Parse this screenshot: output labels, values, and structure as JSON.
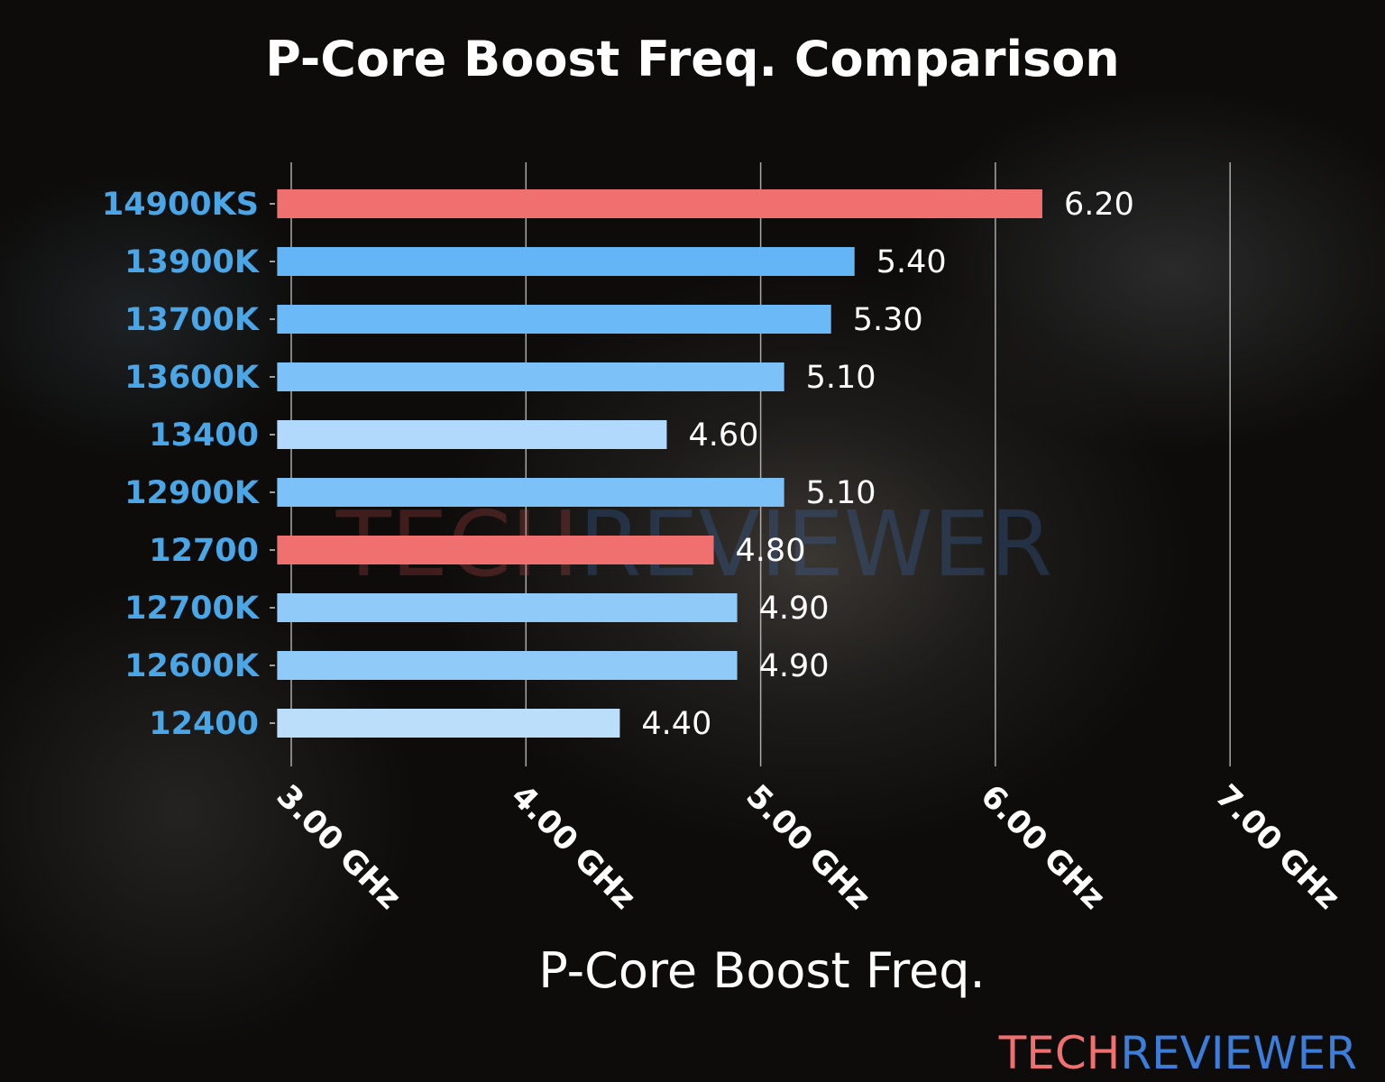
{
  "chart_data": {
    "type": "bar",
    "orientation": "horizontal",
    "title": "P-Core Boost Freq. Comparison",
    "xlabel": "P-Core Boost Freq.",
    "ylabel": "",
    "categories": [
      "14900KS",
      "13900K",
      "13700K",
      "13600K",
      "13400",
      "12900K",
      "12700",
      "12700K",
      "12600K",
      "12400"
    ],
    "values": [
      6.2,
      5.4,
      5.3,
      5.1,
      4.6,
      5.1,
      4.8,
      4.9,
      4.9,
      4.4
    ],
    "value_labels": [
      "6.20",
      "5.40",
      "5.30",
      "5.10",
      "4.60",
      "5.10",
      "4.80",
      "4.90",
      "4.90",
      "4.40"
    ],
    "bar_colors": [
      "#f07070",
      "#64b5f6",
      "#6bb9f6",
      "#7cc1f7",
      "#b0d9fb",
      "#7cc1f7",
      "#f07070",
      "#90caf9",
      "#90caf9",
      "#bbdefb"
    ],
    "xticks": [
      3,
      4,
      5,
      6,
      7
    ],
    "xtick_labels": [
      "3.00 GHz",
      "4.00 GHz",
      "5.00 GHz",
      "6.00 GHz",
      "7.00 GHz"
    ],
    "xlim": [
      2.94,
      7.0
    ],
    "grid": "vertical",
    "category_label_color": "#4aa6e6"
  },
  "watermark": {
    "part1": "TECH",
    "part2": "REVIEWER"
  },
  "logo": {
    "part1": "TECH",
    "part2": "REVIEWER",
    "color1": "#f07070",
    "color2": "#3b7dd8"
  }
}
